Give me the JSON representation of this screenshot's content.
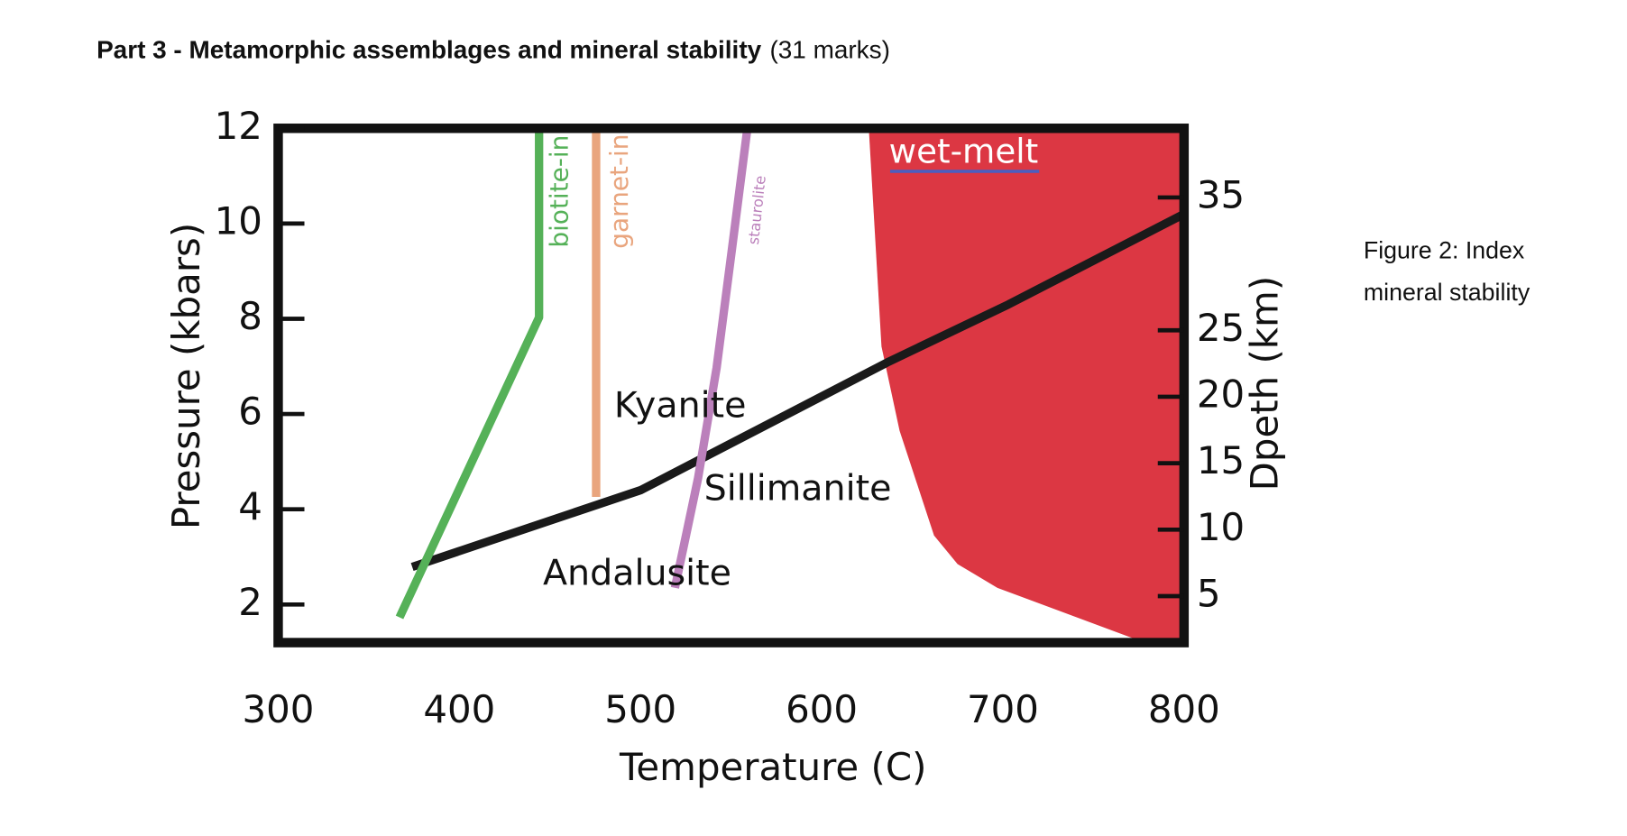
{
  "header": {
    "title": "Part 3 - Metamorphic assemblages and mineral stability",
    "marks": "(31 marks)"
  },
  "caption": [
    "Figure 2: Index",
    "mineral stability"
  ],
  "chart_data": {
    "type": "line",
    "x_label": "Temperature (C)",
    "y_label": "Pressure (kbars)",
    "y2_label": "Dpeth (km)",
    "xlim": [
      300,
      800
    ],
    "xticks": [
      300,
      400,
      500,
      600,
      700,
      800
    ],
    "ylim": [
      1.2,
      12
    ],
    "yticks": [
      2,
      4,
      6,
      8,
      10,
      12
    ],
    "y2lim": [
      1.5,
      40.2
    ],
    "y2ticks": [
      5,
      10,
      15,
      20,
      25,
      35
    ],
    "annotations": [
      "Kyanite",
      "Sillimanite",
      "Andalusite"
    ],
    "series": [
      {
        "name": "wet-melt",
        "type": "area",
        "color": "#dc3743",
        "x": [
          626,
          633,
          643,
          662,
          675,
          697,
          772,
          800,
          800
        ],
        "values": [
          12,
          7.42,
          5.65,
          3.45,
          2.85,
          2.35,
          1.29,
          1.2,
          12
        ]
      },
      {
        "type": "line",
        "color": "#1a1a1a",
        "x": [
          374,
          500,
          636,
          703,
          800
        ],
        "values": [
          2.79,
          4.4,
          7.08,
          8.3,
          10.2
        ]
      },
      {
        "name": "biotite-in",
        "type": "line",
        "color": "#55b158",
        "x": [
          367,
          444,
          444
        ],
        "values": [
          1.73,
          8.03,
          12
        ]
      },
      {
        "name": "garnet-in",
        "type": "line",
        "color": "#e9a57e",
        "x": [
          475.5,
          475.5
        ],
        "values": [
          12,
          4.26
        ]
      },
      {
        "name": "staurolite",
        "type": "line",
        "color": "#bb80bb",
        "x": [
          519,
          531.8,
          542,
          551,
          559
        ],
        "values": [
          2.35,
          4.66,
          6.97,
          9.62,
          12
        ]
      }
    ]
  }
}
